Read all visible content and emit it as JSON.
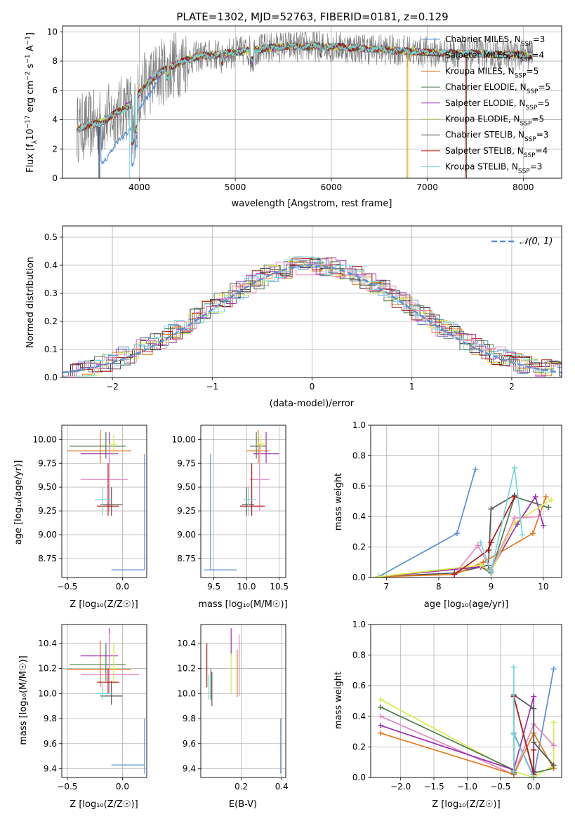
{
  "title": "PLATE=1302, MJD=52763, FIBERID=0181, z=0.129",
  "colors": {
    "Chabrier MILES": "#5b8fd9",
    "Salpeter MILES": "#1f1f1f",
    "Kroupa MILES": "#e07b1a",
    "Chabrier ELODIE": "#4f7c4f",
    "Salpeter ELODIE": "#9b30b5",
    "Kroupa ELODIE": "#d8ec4a",
    "Chabrier STELIB": "#555555",
    "Salpeter STELIB": "#b01818",
    "Kroupa STELIB": "#74d7d9",
    "pink": "#ea86c2",
    "data": "#7f7f7f",
    "normal": "#5b8fd9"
  },
  "spectrum": {
    "xlabel": "wavelength [Angstrom, rest frame]",
    "ylabel_parts": [
      "Flux [f",
      "λ",
      "10",
      "−17",
      " erg cm",
      "−2",
      " s",
      "−1",
      " A",
      "−1",
      "]"
    ],
    "legend": [
      {
        "label": "Chabrier MILES, N",
        "sub": "SSP",
        "suffix": "=3",
        "key": "Chabrier MILES"
      },
      {
        "label": "Salpeter MILES, N",
        "sub": "SSP",
        "suffix": "=4",
        "key": "Salpeter MILES"
      },
      {
        "label": "Kroupa MILES, N",
        "sub": "SSP",
        "suffix": "=5",
        "key": "Kroupa MILES"
      },
      {
        "label": "Chabrier ELODIE, N",
        "sub": "SSP",
        "suffix": "=5",
        "key": "Chabrier ELODIE"
      },
      {
        "label": "Salpeter ELODIE, N",
        "sub": "SSP",
        "suffix": "=5",
        "key": "Salpeter ELODIE"
      },
      {
        "label": "Kroupa ELODIE, N",
        "sub": "SSP",
        "suffix": "=5",
        "key": "Kroupa ELODIE"
      },
      {
        "label": "Chabrier STELIB, N",
        "sub": "SSP",
        "suffix": "=3",
        "key": "Chabrier STELIB"
      },
      {
        "label": "Salpeter STELIB, N",
        "sub": "SSP",
        "suffix": "=4",
        "key": "Salpeter STELIB"
      },
      {
        "label": "Kroupa STELIB, N",
        "sub": "SSP",
        "suffix": "=3",
        "key": "Kroupa STELIB"
      }
    ]
  },
  "hist": {
    "xlabel": "(data-model)/error",
    "ylabel": "Normed distribution",
    "legend_label": "𝒩(0, 1)"
  },
  "panels": {
    "age_z": {
      "xlabel": "Z [log₁₀(Z/Z☉)]",
      "ylabel": "age  [log₁₀(age/yr)]"
    },
    "age_mass": {
      "xlabel": "mass [log₁₀(M/M☉)]"
    },
    "mw_age": {
      "xlabel": "age  [log₁₀(age/yr)]",
      "ylabel": "mass weight"
    },
    "mass_z": {
      "xlabel": "Z [log₁₀(Z/Z☉)]",
      "ylabel": "mass [log₁₀(M/M☉)]"
    },
    "mass_ebv": {
      "xlabel": "E(B-V)"
    },
    "mw_z": {
      "xlabel": "Z [log₁₀(Z/Z☉)]",
      "ylabel": "mass weight"
    }
  },
  "chart_data": [
    {
      "type": "line",
      "title": "PLATE=1302, MJD=52763, FIBERID=0181, z=0.129",
      "xlabel": "wavelength [Angstrom, rest frame]",
      "ylabel": "Flux [fλ10−17 erg cm−2 s−1 A−1]",
      "xlim": [
        3200,
        8400
      ],
      "ylim": [
        0,
        10.4
      ],
      "xticks": [
        4000,
        5000,
        6000,
        7000,
        8000
      ],
      "yticks": [
        0,
        2,
        4,
        6,
        8,
        10
      ],
      "continuum": {
        "x": [
          3350,
          3600,
          3900,
          4100,
          4300,
          4600,
          5000,
          5500,
          6000,
          6500,
          7000,
          7500,
          8100
        ],
        "y": [
          3.4,
          3.8,
          5.0,
          6.6,
          7.6,
          8.3,
          8.6,
          9.0,
          9.0,
          8.8,
          8.6,
          8.5,
          8.4
        ]
      },
      "series": [
        "Chabrier MILES",
        "Salpeter MILES",
        "Kroupa MILES",
        "Chabrier ELODIE",
        "Salpeter ELODIE",
        "Kroupa ELODIE",
        "Chabrier STELIB",
        "Salpeter STELIB",
        "Kroupa STELIB"
      ]
    },
    {
      "type": "line",
      "xlabel": "(data-model)/error",
      "ylabel": "Normed distribution",
      "xlim": [
        -2.5,
        2.5
      ],
      "ylim": [
        0,
        0.54
      ],
      "xticks": [
        -2,
        -1,
        0,
        1,
        2
      ],
      "yticks": [
        0.0,
        0.1,
        0.2,
        0.3,
        0.4,
        0.5
      ],
      "bin_width": 0.1,
      "normal_curve": {
        "mu": 0,
        "sigma": 1
      }
    },
    {
      "type": "scatter",
      "xlabel": "Z [log₁₀(Z/Z☉)]",
      "ylabel": "age  [log₁₀(age/yr)]",
      "xlim": [
        -0.55,
        0.22
      ],
      "ylim": [
        8.55,
        10.15
      ],
      "xticks": [
        -0.5,
        0.0
      ],
      "yticks": [
        8.75,
        9.0,
        9.25,
        9.5,
        9.75,
        10.0
      ],
      "points": [
        {
          "color": "#5b8fd9",
          "x": [
            -0.1,
            0.2
          ],
          "xv": 0.2,
          "y": [
            8.63,
            9.85
          ],
          "yv": 8.63
        },
        {
          "color": "#e07b1a",
          "x": [
            -0.5,
            0.08
          ],
          "xv": -0.2,
          "y": [
            9.75,
            10.1
          ],
          "yv": 9.88
        },
        {
          "color": "#4f7c4f",
          "x": [
            -0.48,
            0.03
          ],
          "xv": -0.15,
          "y": [
            9.8,
            10.08
          ],
          "yv": 9.93
        },
        {
          "color": "#9b30b5",
          "x": [
            -0.38,
            -0.04
          ],
          "xv": -0.12,
          "y": [
            9.75,
            10.08
          ],
          "yv": 9.85
        },
        {
          "color": "#d8ec4a",
          "x": [
            -0.12,
            -0.05
          ],
          "xv": -0.08,
          "y": [
            9.85,
            10.05
          ],
          "yv": 9.95
        },
        {
          "color": "#ea86c2",
          "x": [
            -0.38,
            0.05
          ],
          "xv": -0.12,
          "y": [
            9.25,
            9.95
          ],
          "yv": 9.58
        },
        {
          "color": "#555555",
          "x": [
            -0.2,
            0.0
          ],
          "xv": -0.1,
          "y": [
            9.2,
            9.5
          ],
          "yv": 9.32
        },
        {
          "color": "#b01818",
          "x": [
            -0.23,
            -0.03
          ],
          "xv": -0.13,
          "y": [
            9.2,
            9.75
          ],
          "yv": 9.3
        },
        {
          "color": "#74d7d9",
          "x": [
            -0.25,
            -0.1
          ],
          "xv": -0.18,
          "y": [
            9.2,
            9.5
          ],
          "yv": 9.37
        }
      ]
    },
    {
      "type": "scatter",
      "xlabel": "mass [log₁₀(M/M☉)]",
      "xlim": [
        9.3,
        10.6
      ],
      "ylim": [
        8.55,
        10.15
      ],
      "xticks": [
        9.5,
        10.0,
        10.5
      ],
      "yticks": [
        8.75,
        9.0,
        9.25,
        9.5,
        9.75,
        10.0
      ],
      "points": [
        {
          "color": "#5b8fd9",
          "x": [
            9.35,
            9.85
          ],
          "xv": 9.45,
          "y": [
            8.63,
            9.85
          ],
          "yv": 8.63
        },
        {
          "color": "#e07b1a",
          "x": [
            10.0,
            10.35
          ],
          "xv": 10.18,
          "y": [
            9.75,
            10.1
          ],
          "yv": 9.88
        },
        {
          "color": "#4f7c4f",
          "x": [
            10.05,
            10.3
          ],
          "xv": 10.15,
          "y": [
            9.8,
            10.08
          ],
          "yv": 9.93
        },
        {
          "color": "#9b30b5",
          "x": [
            10.1,
            10.5
          ],
          "xv": 10.3,
          "y": [
            9.75,
            10.08
          ],
          "yv": 9.85
        },
        {
          "color": "#d8ec4a",
          "x": [
            10.15,
            10.3
          ],
          "xv": 10.22,
          "y": [
            9.85,
            10.05
          ],
          "yv": 9.95
        },
        {
          "color": "#ea86c2",
          "x": [
            10.05,
            10.35
          ],
          "xv": 10.2,
          "y": [
            9.25,
            9.95
          ],
          "yv": 9.58
        },
        {
          "color": "#555555",
          "x": [
            9.93,
            10.12
          ],
          "xv": 10.0,
          "y": [
            9.2,
            9.5
          ],
          "yv": 9.32
        },
        {
          "color": "#b01818",
          "x": [
            9.9,
            10.28
          ],
          "xv": 10.08,
          "y": [
            9.2,
            9.75
          ],
          "yv": 9.3
        },
        {
          "color": "#74d7d9",
          "x": [
            9.95,
            10.15
          ],
          "xv": 10.03,
          "y": [
            9.2,
            9.5
          ],
          "yv": 9.37
        }
      ]
    },
    {
      "type": "line",
      "xlabel": "age  [log₁₀(age/yr)]",
      "ylabel": "mass weight",
      "xlim": [
        6.7,
        10.35
      ],
      "ylim": [
        0,
        1.0
      ],
      "xticks": [
        7,
        8,
        9,
        10
      ],
      "yticks": [
        0.0,
        0.2,
        0.4,
        0.6,
        0.8,
        1.0
      ],
      "series": [
        {
          "color": "#5b8fd9",
          "x": [
            6.85,
            8.35,
            8.7
          ],
          "y": [
            0.005,
            0.29,
            0.71
          ]
        },
        {
          "color": "#555555",
          "x": [
            6.85,
            8.3,
            8.95,
            9.0,
            9.45
          ],
          "y": [
            0.005,
            0.03,
            0.08,
            0.45,
            0.54
          ]
        },
        {
          "color": "#e07b1a",
          "x": [
            6.85,
            8.3,
            8.85,
            9.8,
            10.05
          ],
          "y": [
            0.005,
            0.02,
            0.1,
            0.29,
            0.53
          ]
        },
        {
          "color": "#4f7c4f",
          "x": [
            6.85,
            8.8,
            9.0,
            9.45,
            10.1
          ],
          "y": [
            0.005,
            0.07,
            0.03,
            0.53,
            0.46
          ]
        },
        {
          "color": "#9b30b5",
          "x": [
            6.85,
            8.8,
            9.0,
            9.5,
            9.85,
            10.0
          ],
          "y": [
            0.005,
            0.07,
            0.05,
            0.35,
            0.53,
            0.34
          ]
        },
        {
          "color": "#d8ec4a",
          "x": [
            6.85,
            8.8,
            9.0,
            9.45,
            10.15
          ],
          "y": [
            0.005,
            0.08,
            0.04,
            0.36,
            0.51
          ]
        },
        {
          "color": "#ea86c2",
          "x": [
            8.3,
            8.75,
            9.0,
            9.45,
            9.9
          ],
          "y": [
            0.02,
            0.21,
            0.05,
            0.39,
            0.4
          ]
        },
        {
          "color": "#b01818",
          "x": [
            8.3,
            8.95,
            9.0,
            9.45
          ],
          "y": [
            0.02,
            0.18,
            0.23,
            0.53
          ]
        },
        {
          "color": "#74d7d9",
          "x": [
            8.8,
            9.0,
            9.45,
            9.6
          ],
          "y": [
            0.23,
            0.04,
            0.72,
            0.28
          ]
        }
      ]
    },
    {
      "type": "scatter",
      "xlabel": "Z [log₁₀(Z/Z☉)]",
      "ylabel": "mass [log₁₀(M/M☉)]",
      "xlim": [
        -0.55,
        0.22
      ],
      "ylim": [
        9.33,
        10.55
      ],
      "xticks": [
        -0.5,
        0.0
      ],
      "yticks": [
        9.4,
        9.6,
        9.8,
        10.0,
        10.2,
        10.4
      ],
      "points": [
        {
          "color": "#5b8fd9",
          "x": [
            -0.1,
            0.2
          ],
          "xv": 0.2,
          "y": [
            9.36,
            9.8
          ],
          "yv": 9.43
        },
        {
          "color": "#e07b1a",
          "x": [
            -0.5,
            0.08
          ],
          "xv": -0.2,
          "y": [
            10.05,
            10.42
          ],
          "yv": 10.19
        },
        {
          "color": "#4f7c4f",
          "x": [
            -0.48,
            0.03
          ],
          "xv": -0.15,
          "y": [
            10.1,
            10.4
          ],
          "yv": 10.23
        },
        {
          "color": "#9b30b5",
          "x": [
            -0.38,
            -0.04
          ],
          "xv": -0.12,
          "y": [
            10.15,
            10.52
          ],
          "yv": 10.3
        },
        {
          "color": "#d8ec4a",
          "x": [
            -0.12,
            -0.05
          ],
          "xv": -0.08,
          "y": [
            10.08,
            10.4
          ],
          "yv": 10.2
        },
        {
          "color": "#ea86c2",
          "x": [
            -0.38,
            0.15
          ],
          "xv": -0.12,
          "y": [
            10.0,
            10.48
          ],
          "yv": 10.15
        },
        {
          "color": "#555555",
          "x": [
            -0.2,
            0.0
          ],
          "xv": -0.1,
          "y": [
            9.91,
            10.1
          ],
          "yv": 9.98
        },
        {
          "color": "#b01818",
          "x": [
            -0.23,
            -0.03
          ],
          "xv": -0.13,
          "y": [
            10.0,
            10.2
          ],
          "yv": 10.09
        },
        {
          "color": "#74d7d9",
          "x": [
            -0.25,
            -0.1
          ],
          "xv": -0.18,
          "y": [
            9.95,
            10.1
          ],
          "yv": 10.0
        }
      ]
    },
    {
      "type": "scatter",
      "xlabel": "E(B-V)",
      "xlim": [
        0.0,
        0.42
      ],
      "ylim": [
        9.33,
        10.55
      ],
      "xticks": [
        0.2,
        0.4
      ],
      "yticks": [
        9.4,
        9.6,
        9.8,
        10.0,
        10.2,
        10.4
      ],
      "points": [
        {
          "color": "#5b8fd9",
          "x": 0.395,
          "y": [
            9.36,
            9.8
          ]
        },
        {
          "color": "#e07b1a",
          "x": 0.18,
          "y": [
            9.97,
            10.35
          ]
        },
        {
          "color": "#4f7c4f",
          "x": 0.05,
          "y": [
            9.95,
            10.2
          ]
        },
        {
          "color": "#9b30b5",
          "x": 0.15,
          "y": [
            10.3,
            10.52
          ]
        },
        {
          "color": "#d8ec4a",
          "x": 0.15,
          "y": [
            10.0,
            10.32
          ]
        },
        {
          "color": "#ea86c2",
          "x": 0.19,
          "y": [
            9.98,
            10.47
          ]
        },
        {
          "color": "#555555",
          "x": 0.055,
          "y": [
            9.9,
            10.17
          ]
        },
        {
          "color": "#b01818",
          "x": 0.03,
          "y": [
            10.05,
            10.4
          ]
        },
        {
          "color": "#74d7d9",
          "x": 0.04,
          "y": [
            9.95,
            10.15
          ]
        }
      ]
    },
    {
      "type": "line",
      "xlabel": "Z [log₁₀(Z/Z☉)]",
      "ylabel": "mass weight",
      "xlim": [
        -2.45,
        0.42
      ],
      "ylim": [
        0,
        1.0
      ],
      "xticks": [
        -2.0,
        -1.5,
        -1.0,
        -0.5,
        0.0
      ],
      "yticks": [
        0.0,
        0.2,
        0.4,
        0.6,
        0.8,
        1.0
      ],
      "series": [
        {
          "color": "#5b8fd9",
          "x": [
            -0.3,
            0.0,
            0.3
          ],
          "y": [
            0.29,
            0.005,
            0.71
          ]
        },
        {
          "color": "#d8ec4a",
          "x": [
            -2.3,
            -0.3,
            0.0,
            0.3,
            0.3
          ],
          "y": [
            0.51,
            0.04,
            0.0,
            0.08,
            0.36
          ]
        },
        {
          "color": "#4f7c4f",
          "x": [
            -2.3,
            -0.3,
            -0.3,
            0.0,
            0.3
          ],
          "y": [
            0.46,
            0.05,
            0.53,
            0.03,
            0.06
          ]
        },
        {
          "color": "#ea86c2",
          "x": [
            -2.3,
            -0.3,
            0.0,
            0.3
          ],
          "y": [
            0.4,
            0.02,
            0.35,
            0.21
          ]
        },
        {
          "color": "#9b30b5",
          "x": [
            -2.3,
            -0.3,
            0.0,
            0.0
          ],
          "y": [
            0.34,
            0.05,
            0.53,
            0.04
          ]
        },
        {
          "color": "#e07b1a",
          "x": [
            -2.3,
            -0.3,
            0.0,
            0.3
          ],
          "y": [
            0.29,
            0.02,
            0.29,
            0.06
          ]
        },
        {
          "color": "#555555",
          "x": [
            -0.3,
            -0.3,
            0.0,
            0.0,
            0.3
          ],
          "y": [
            0.03,
            0.54,
            0.45,
            0.23,
            0.08
          ]
        },
        {
          "color": "#b01818",
          "x": [
            -0.3,
            0.0,
            0.0
          ],
          "y": [
            0.53,
            0.02,
            0.18
          ]
        },
        {
          "color": "#74d7d9",
          "x": [
            -0.3,
            -0.3,
            -0.3,
            0.0
          ],
          "y": [
            0.04,
            0.72,
            0.28,
            0.0
          ]
        }
      ]
    }
  ]
}
